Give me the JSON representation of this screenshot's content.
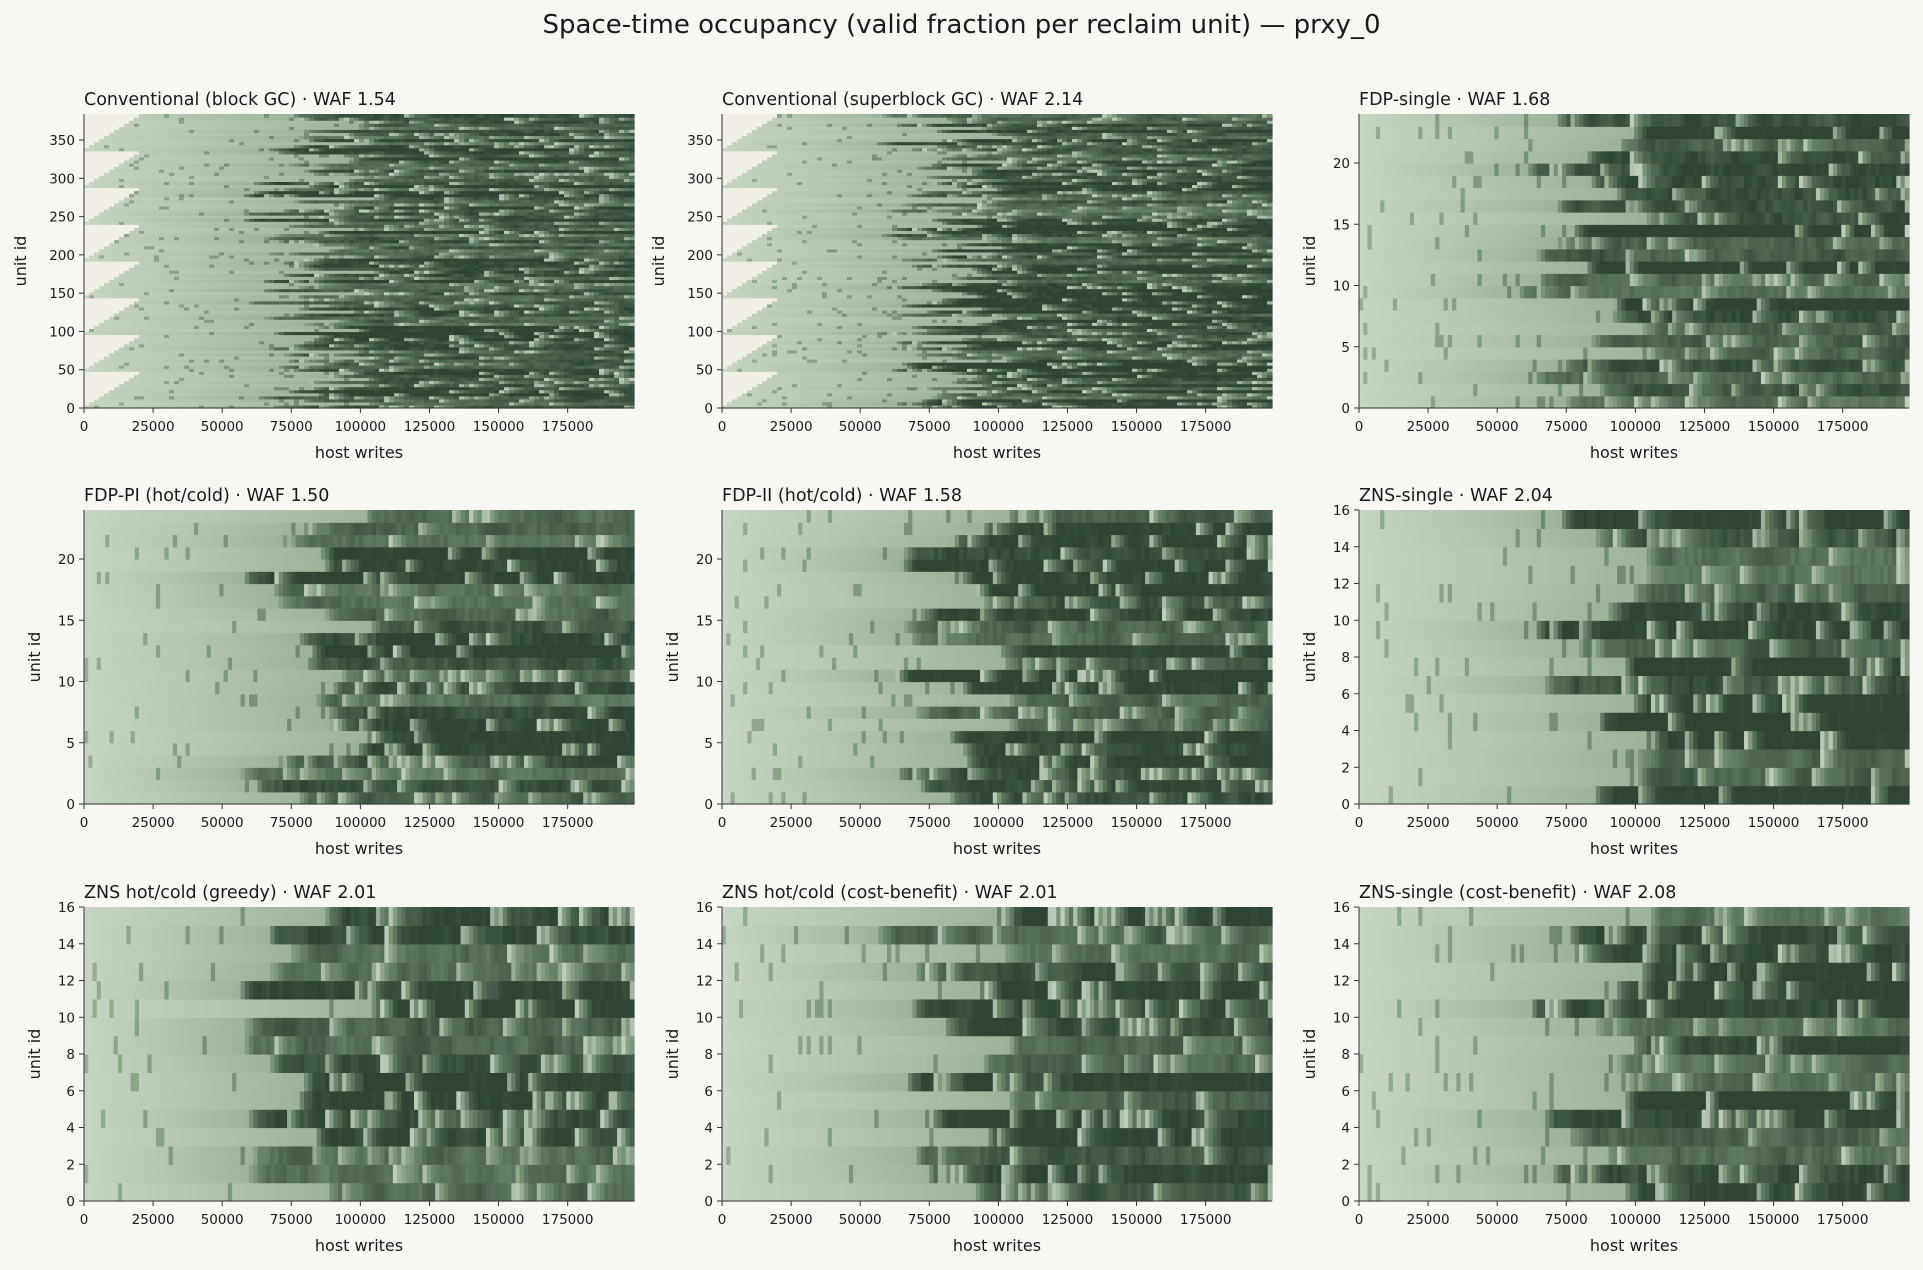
{
  "figure": {
    "title": "Space-time occupancy (valid fraction per reclaim unit) — prxy_0"
  },
  "colors": {
    "background": "#f8f7f4",
    "empty": "#f1eee6",
    "low": "#cfdccb",
    "mid": "#7d977c",
    "high": "#2e4535"
  },
  "chart_data": [
    {
      "type": "heatmap",
      "title": "Conventional (block GC) · WAF 1.54",
      "xlabel": "host writes",
      "ylabel": "unit id",
      "xlim": [
        0,
        199000
      ],
      "ylim": [
        0,
        384
      ],
      "xticks": [
        0,
        25000,
        50000,
        75000,
        100000,
        125000,
        150000,
        175000
      ],
      "yticks": [
        0,
        50,
        100,
        150,
        200,
        250,
        300,
        350
      ],
      "n_units": 384,
      "grid": false
    },
    {
      "type": "heatmap",
      "title": "Conventional (superblock GC) · WAF 2.14",
      "xlabel": "host writes",
      "ylabel": "unit id",
      "xlim": [
        0,
        199000
      ],
      "ylim": [
        0,
        384
      ],
      "xticks": [
        0,
        25000,
        50000,
        75000,
        100000,
        125000,
        150000,
        175000
      ],
      "yticks": [
        0,
        50,
        100,
        150,
        200,
        250,
        300,
        350
      ],
      "n_units": 384,
      "grid": false
    },
    {
      "type": "heatmap",
      "title": "FDP-single · WAF 1.68",
      "xlabel": "host writes",
      "ylabel": "unit id",
      "xlim": [
        0,
        199000
      ],
      "ylim": [
        0,
        24
      ],
      "xticks": [
        0,
        25000,
        50000,
        75000,
        100000,
        125000,
        150000,
        175000
      ],
      "yticks": [
        0,
        5,
        10,
        15,
        20
      ],
      "n_units": 24,
      "grid": false
    },
    {
      "type": "heatmap",
      "title": "FDP-PI (hot/cold) · WAF 1.50",
      "xlabel": "host writes",
      "ylabel": "unit id",
      "xlim": [
        0,
        199000
      ],
      "ylim": [
        0,
        24
      ],
      "xticks": [
        0,
        25000,
        50000,
        75000,
        100000,
        125000,
        150000,
        175000
      ],
      "yticks": [
        0,
        5,
        10,
        15,
        20
      ],
      "n_units": 24,
      "grid": false
    },
    {
      "type": "heatmap",
      "title": "FDP-II (hot/cold) · WAF 1.58",
      "xlabel": "host writes",
      "ylabel": "unit id",
      "xlim": [
        0,
        199000
      ],
      "ylim": [
        0,
        24
      ],
      "xticks": [
        0,
        25000,
        50000,
        75000,
        100000,
        125000,
        150000,
        175000
      ],
      "yticks": [
        0,
        5,
        10,
        15,
        20
      ],
      "n_units": 24,
      "grid": false
    },
    {
      "type": "heatmap",
      "title": "ZNS-single · WAF 2.04",
      "xlabel": "host writes",
      "ylabel": "unit id",
      "xlim": [
        0,
        199000
      ],
      "ylim": [
        0,
        16
      ],
      "xticks": [
        0,
        25000,
        50000,
        75000,
        100000,
        125000,
        150000,
        175000
      ],
      "yticks": [
        0,
        2,
        4,
        6,
        8,
        10,
        12,
        14,
        16
      ],
      "n_units": 16,
      "grid": false
    },
    {
      "type": "heatmap",
      "title": "ZNS hot/cold (greedy) · WAF 2.01",
      "xlabel": "host writes",
      "ylabel": "unit id",
      "xlim": [
        0,
        199000
      ],
      "ylim": [
        0,
        16
      ],
      "xticks": [
        0,
        25000,
        50000,
        75000,
        100000,
        125000,
        150000,
        175000
      ],
      "yticks": [
        0,
        2,
        4,
        6,
        8,
        10,
        12,
        14,
        16
      ],
      "n_units": 16,
      "grid": false
    },
    {
      "type": "heatmap",
      "title": "ZNS hot/cold (cost-benefit) · WAF 2.01",
      "xlabel": "host writes",
      "ylabel": "unit id",
      "xlim": [
        0,
        199000
      ],
      "ylim": [
        0,
        16
      ],
      "xticks": [
        0,
        25000,
        50000,
        75000,
        100000,
        125000,
        150000,
        175000
      ],
      "yticks": [
        0,
        2,
        4,
        6,
        8,
        10,
        12,
        14,
        16
      ],
      "n_units": 16,
      "grid": false
    },
    {
      "type": "heatmap",
      "title": "ZNS-single (cost-benefit) · WAF 2.08",
      "xlabel": "host writes",
      "ylabel": "unit id",
      "xlim": [
        0,
        199000
      ],
      "ylim": [
        0,
        16
      ],
      "xticks": [
        0,
        25000,
        50000,
        75000,
        100000,
        125000,
        150000,
        175000
      ],
      "yticks": [
        0,
        2,
        4,
        6,
        8,
        10,
        12,
        14,
        16
      ],
      "n_units": 16,
      "grid": false
    }
  ]
}
